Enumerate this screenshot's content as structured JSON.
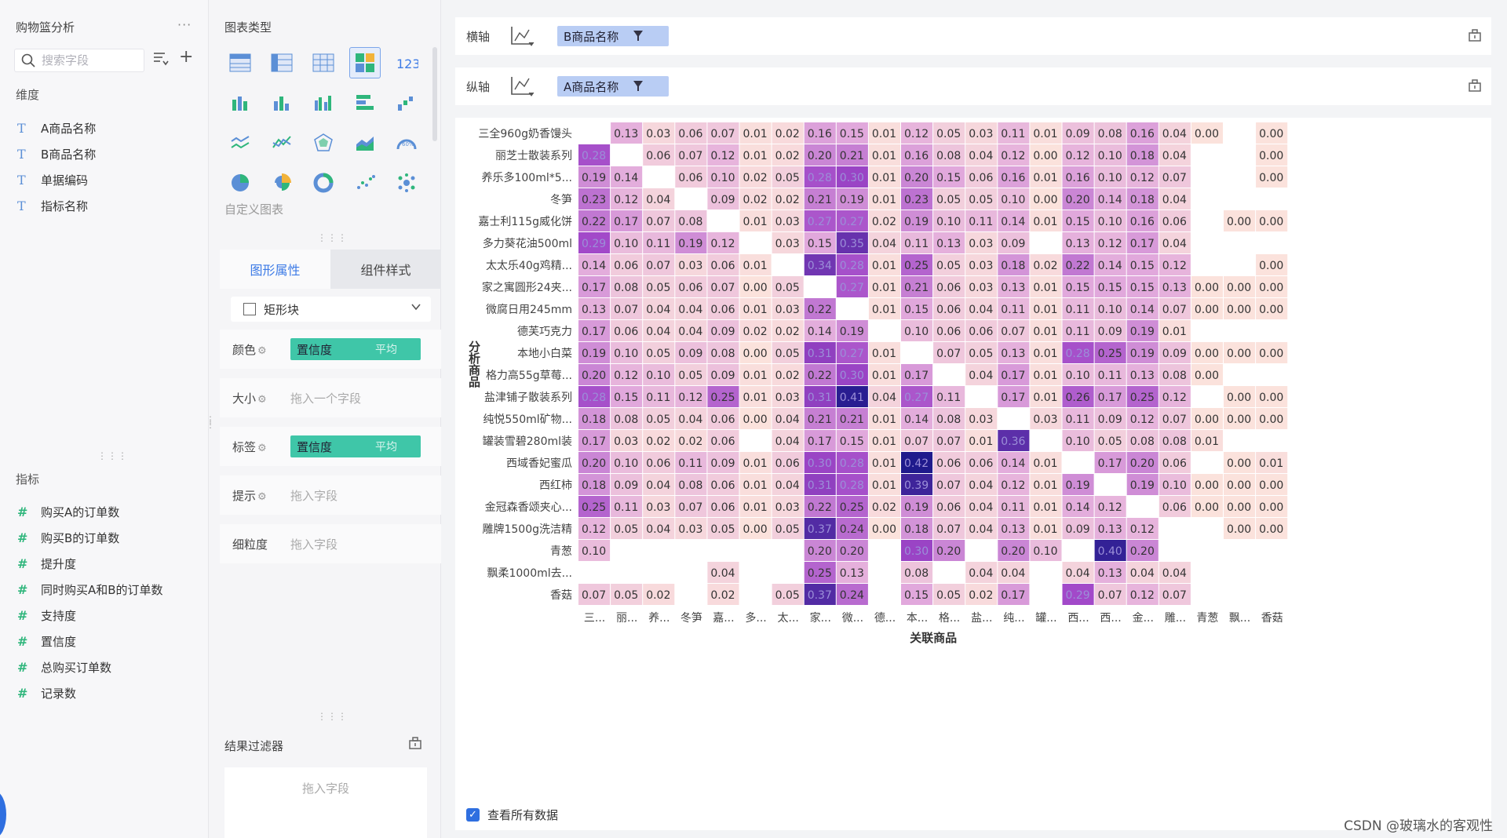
{
  "field_panel": {
    "title": "购物篮分析",
    "more": "···",
    "search_placeholder": "搜索字段",
    "dimension_title": "维度",
    "dimensions": [
      "A商品名称",
      "B商品名称",
      "单据编码",
      "指标名称"
    ],
    "measure_title": "指标",
    "measures": [
      "购买A的订单数",
      "购买B的订单数",
      "提升度",
      "同时购买A和B的订单数",
      "支持度",
      "置信度",
      "总购买订单数",
      "记录数"
    ]
  },
  "config_panel": {
    "chart_type_title": "图表类型",
    "custom_chart": "自定义图表",
    "tabs": [
      "图形属性",
      "组件样式"
    ],
    "shape": "矩形块",
    "props": {
      "color_label": "颜色",
      "color_field": "置信度",
      "color_agg": "平均",
      "size_label": "大小",
      "size_placeholder": "拖入一个字段",
      "label_label": "标签",
      "label_field": "置信度",
      "label_agg": "平均",
      "tooltip_label": "提示",
      "tooltip_placeholder": "拖入字段",
      "granularity_label": "细粒度",
      "granularity_placeholder": "拖入字段"
    },
    "result_filter_title": "结果过滤器",
    "result_filter_placeholder": "拖入字段"
  },
  "axes": {
    "x_label": "横轴",
    "x_field": "B商品名称",
    "y_label": "纵轴",
    "y_field": "A商品名称"
  },
  "show_all_data": "查看所有数据",
  "watermark": "CSDN @玻璃水的客观性",
  "colors": {
    "accent": "#2f6fe0",
    "pill_green": "#3fc6a8",
    "pill_blue": "#b9cdf4",
    "heat_low": "#fbe1dc",
    "heat_high": "#1f1a8c"
  },
  "chart_data": {
    "type": "heatmap",
    "xlabel": "关联商品",
    "ylabel": "分析商品",
    "x_tick_labels": [
      "三...",
      "丽...",
      "养...",
      "冬笋",
      "嘉...",
      "多...",
      "太...",
      "家...",
      "微...",
      "德...",
      "本...",
      "格...",
      "盐...",
      "纯...",
      "罐...",
      "西...",
      "西...",
      "金...",
      "雕...",
      "青葱",
      "飘...",
      "香菇"
    ],
    "y_tick_labels": [
      "三全960g奶香馒头",
      "丽芝士散装系列",
      "养乐多100ml*5...",
      "冬笋",
      "嘉士利115g威化饼",
      "多力葵花油500ml",
      "太太乐40g鸡精...",
      "家之寓圆形24夹...",
      "微腐日用245mm",
      "德芙巧克力",
      "本地小白菜",
      "格力高55g草莓...",
      "盐津铺子散装系列",
      "纯悦550ml矿物...",
      "罐装雪碧280ml装",
      "西域香妃蜜瓜",
      "西红柿",
      "金冠森香颂夹心...",
      "雕牌1500g洗洁精",
      "青葱",
      "飘柔1000ml去...",
      "香菇"
    ],
    "values": [
      [
        null,
        0.13,
        0.03,
        0.06,
        0.07,
        0.01,
        0.02,
        0.16,
        0.15,
        0.01,
        0.12,
        0.05,
        0.03,
        0.11,
        0.01,
        0.09,
        0.08,
        0.16,
        0.04,
        0.0,
        null,
        0.0
      ],
      [
        0.28,
        null,
        0.06,
        0.07,
        0.12,
        0.01,
        0.02,
        0.2,
        0.21,
        0.01,
        0.16,
        0.08,
        0.04,
        0.12,
        0.0,
        0.12,
        0.1,
        0.18,
        0.04,
        null,
        null,
        0.0
      ],
      [
        0.19,
        0.14,
        null,
        0.06,
        0.1,
        0.02,
        0.05,
        0.28,
        0.3,
        0.01,
        0.2,
        0.15,
        0.06,
        0.16,
        0.01,
        0.16,
        0.1,
        0.12,
        0.07,
        null,
        null,
        0.0
      ],
      [
        0.23,
        0.12,
        0.04,
        null,
        0.09,
        0.02,
        0.02,
        0.21,
        0.19,
        0.01,
        0.23,
        0.05,
        0.05,
        0.1,
        0.0,
        0.2,
        0.14,
        0.18,
        0.04,
        null,
        null,
        null
      ],
      [
        0.22,
        0.17,
        0.07,
        0.08,
        null,
        0.01,
        0.03,
        0.27,
        0.27,
        0.02,
        0.19,
        0.1,
        0.11,
        0.14,
        0.01,
        0.15,
        0.1,
        0.16,
        0.06,
        null,
        0.0,
        0.0
      ],
      [
        0.29,
        0.1,
        0.11,
        0.19,
        0.12,
        null,
        0.03,
        0.15,
        0.35,
        0.04,
        0.11,
        0.13,
        0.03,
        0.09,
        null,
        0.13,
        0.12,
        0.17,
        0.04,
        null,
        null,
        null
      ],
      [
        0.14,
        0.06,
        0.07,
        0.03,
        0.06,
        0.01,
        null,
        0.34,
        0.28,
        0.01,
        0.25,
        0.05,
        0.03,
        0.18,
        0.02,
        0.22,
        0.14,
        0.15,
        0.12,
        null,
        null,
        0.0
      ],
      [
        0.17,
        0.08,
        0.05,
        0.06,
        0.07,
        0.0,
        0.05,
        null,
        0.27,
        0.01,
        0.21,
        0.06,
        0.03,
        0.13,
        0.01,
        0.15,
        0.15,
        0.15,
        0.13,
        0.0,
        0.0,
        0.0
      ],
      [
        0.13,
        0.07,
        0.04,
        0.04,
        0.06,
        0.01,
        0.03,
        0.22,
        null,
        0.01,
        0.15,
        0.06,
        0.04,
        0.11,
        0.01,
        0.11,
        0.1,
        0.14,
        0.07,
        0.0,
        0.0,
        0.0
      ],
      [
        0.17,
        0.06,
        0.04,
        0.04,
        0.09,
        0.02,
        0.02,
        0.14,
        0.19,
        null,
        0.1,
        0.06,
        0.06,
        0.07,
        0.01,
        0.11,
        0.09,
        0.19,
        0.01,
        null,
        null,
        null
      ],
      [
        0.19,
        0.1,
        0.05,
        0.09,
        0.08,
        0.0,
        0.05,
        0.31,
        0.27,
        0.01,
        null,
        0.07,
        0.05,
        0.13,
        0.01,
        0.28,
        0.25,
        0.19,
        0.09,
        0.0,
        0.0,
        0.0
      ],
      [
        0.2,
        0.12,
        0.1,
        0.05,
        0.09,
        0.01,
        0.02,
        0.22,
        0.3,
        0.01,
        0.17,
        null,
        0.04,
        0.17,
        0.01,
        0.1,
        0.11,
        0.13,
        0.08,
        0.0,
        null,
        null
      ],
      [
        0.28,
        0.15,
        0.11,
        0.12,
        0.25,
        0.01,
        0.03,
        0.31,
        0.41,
        0.04,
        0.27,
        0.11,
        null,
        0.17,
        0.01,
        0.26,
        0.17,
        0.25,
        0.12,
        null,
        0.0,
        0.0
      ],
      [
        0.18,
        0.08,
        0.05,
        0.04,
        0.06,
        0.0,
        0.04,
        0.21,
        0.21,
        0.01,
        0.14,
        0.08,
        0.03,
        null,
        0.03,
        0.11,
        0.09,
        0.12,
        0.07,
        0.0,
        0.0,
        0.0
      ],
      [
        0.17,
        0.03,
        0.02,
        0.02,
        0.06,
        null,
        0.04,
        0.17,
        0.15,
        0.01,
        0.07,
        0.07,
        0.01,
        0.36,
        null,
        0.1,
        0.05,
        0.08,
        0.08,
        0.01,
        null,
        null
      ],
      [
        0.2,
        0.1,
        0.06,
        0.11,
        0.09,
        0.01,
        0.06,
        0.3,
        0.28,
        0.01,
        0.42,
        0.06,
        0.06,
        0.14,
        0.01,
        null,
        0.17,
        0.2,
        0.06,
        null,
        0.0,
        0.01
      ],
      [
        0.18,
        0.09,
        0.04,
        0.08,
        0.06,
        0.01,
        0.04,
        0.31,
        0.28,
        0.01,
        0.39,
        0.07,
        0.04,
        0.12,
        0.01,
        0.19,
        null,
        0.19,
        0.1,
        0.0,
        0.0,
        0.0
      ],
      [
        0.25,
        0.11,
        0.03,
        0.07,
        0.06,
        0.01,
        0.03,
        0.22,
        0.25,
        0.02,
        0.19,
        0.06,
        0.04,
        0.11,
        0.01,
        0.14,
        0.12,
        null,
        0.06,
        0.0,
        0.0,
        0.0
      ],
      [
        0.12,
        0.05,
        0.04,
        0.03,
        0.05,
        0.0,
        0.05,
        0.37,
        0.24,
        0.0,
        0.18,
        0.07,
        0.04,
        0.13,
        0.01,
        0.09,
        0.13,
        0.12,
        null,
        null,
        0.0,
        0.0
      ],
      [
        0.1,
        null,
        null,
        null,
        null,
        null,
        null,
        0.2,
        0.2,
        null,
        0.3,
        0.2,
        null,
        0.2,
        0.1,
        null,
        0.4,
        0.2,
        null,
        null,
        null,
        null
      ],
      [
        null,
        null,
        null,
        null,
        0.04,
        null,
        null,
        0.25,
        0.13,
        null,
        0.08,
        null,
        0.04,
        0.04,
        null,
        0.04,
        0.13,
        0.04,
        0.04,
        null,
        null,
        null
      ],
      [
        0.07,
        0.05,
        0.02,
        null,
        0.02,
        null,
        0.05,
        0.37,
        0.24,
        null,
        0.15,
        0.05,
        0.02,
        0.17,
        null,
        0.29,
        0.07,
        0.12,
        0.07,
        null,
        null,
        null
      ]
    ]
  }
}
